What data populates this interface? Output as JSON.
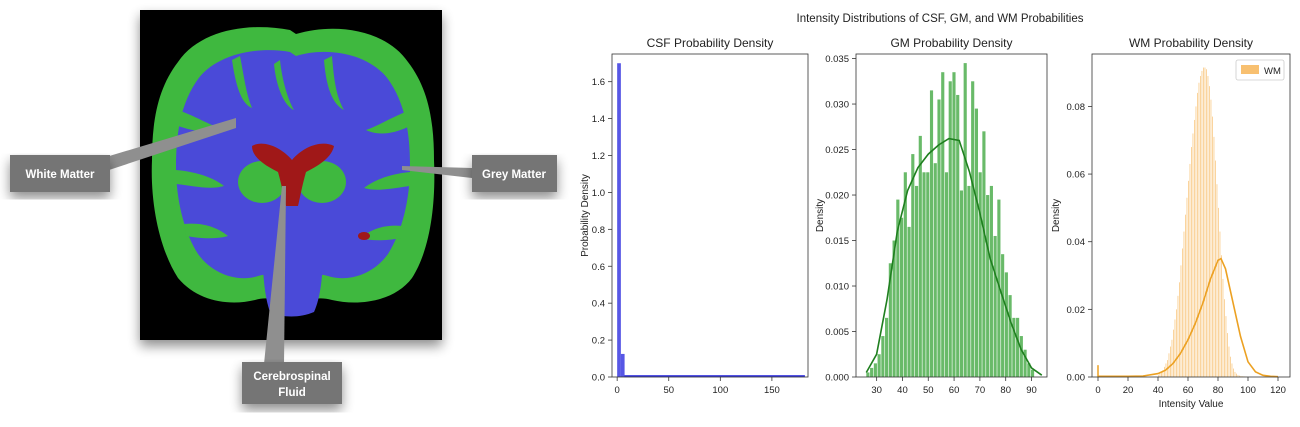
{
  "brain_panel": {
    "labels": {
      "white_matter": "White Matter",
      "grey_matter": "Grey Matter",
      "csf_line1": "Cerebrospinal",
      "csf_line2": "Fluid"
    },
    "colors": {
      "white_matter": "#4a4ad8",
      "grey_matter": "#3fb83f",
      "csf": "#a01818",
      "label_box": "#757575"
    }
  },
  "figure_title": "Intensity Distributions of CSF, GM, and WM Probabilities",
  "chart_data": [
    {
      "type": "bar",
      "title": "CSF Probability Density",
      "xlabel": "",
      "ylabel": "Probability Density",
      "xlim": [
        -5,
        185
      ],
      "ylim": [
        0,
        1.75
      ],
      "xticks": [
        0,
        50,
        100,
        150
      ],
      "yticks": [
        0.0,
        0.2,
        0.4,
        0.6,
        0.8,
        1.0,
        1.2,
        1.4,
        1.6
      ],
      "bin_width": 3.6,
      "bins": [
        {
          "x": 0,
          "value": 1.7
        },
        {
          "x": 3.6,
          "value": 0.125
        }
      ],
      "baseline_line": {
        "x": [
          7,
          182
        ],
        "value": 0.005
      },
      "color": "#3a3ae0"
    },
    {
      "type": "bar",
      "title": "GM Probability Density",
      "xlabel": "",
      "ylabel": "Density",
      "xlim": [
        22,
        96
      ],
      "ylim": [
        0,
        0.0355
      ],
      "xticks": [
        30,
        40,
        50,
        60,
        70,
        80,
        90
      ],
      "yticks": [
        0.0,
        0.005,
        0.01,
        0.015,
        0.02,
        0.025,
        0.03,
        0.035
      ],
      "bin_start": 26,
      "bin_width": 1.45,
      "values": [
        0.0005,
        0.001,
        0.0015,
        0.0025,
        0.0045,
        0.0065,
        0.0125,
        0.015,
        0.0195,
        0.0175,
        0.0225,
        0.0165,
        0.0245,
        0.021,
        0.0265,
        0.0225,
        0.0225,
        0.0315,
        0.0235,
        0.0305,
        0.0335,
        0.0225,
        0.0325,
        0.0335,
        0.031,
        0.0205,
        0.0345,
        0.021,
        0.0325,
        0.0295,
        0.0225,
        0.027,
        0.02,
        0.021,
        0.0155,
        0.0195,
        0.0135,
        0.0115,
        0.009,
        0.0065,
        0.0065,
        0.0045,
        0.003,
        0.0015,
        0.0008
      ],
      "kde": {
        "x": [
          26,
          30,
          34,
          38,
          42,
          46,
          50,
          54,
          58,
          62,
          66,
          70,
          74,
          78,
          82,
          86,
          90,
          94
        ],
        "y": [
          0.0005,
          0.0025,
          0.0085,
          0.016,
          0.0205,
          0.023,
          0.0245,
          0.0255,
          0.0262,
          0.026,
          0.0225,
          0.018,
          0.013,
          0.0095,
          0.006,
          0.003,
          0.001,
          0.0002
        ]
      },
      "color": "#4fae4f",
      "line_color": "#1f7f1f"
    },
    {
      "type": "bar",
      "title": "WM Probability Density",
      "xlabel": "Intensity Value",
      "ylabel": "Density",
      "xlim": [
        -4,
        128
      ],
      "ylim": [
        0,
        0.0955
      ],
      "xticks": [
        0,
        20,
        40,
        60,
        80,
        100,
        120
      ],
      "yticks": [
        0.0,
        0.02,
        0.04,
        0.06,
        0.08
      ],
      "legend": {
        "label": "WM",
        "position": "top-right"
      },
      "bin_start": 40,
      "bin_width": 1,
      "values": [
        0.0005,
        0.001,
        0.0015,
        0.002,
        0.003,
        0.004,
        0.005,
        0.007,
        0.009,
        0.011,
        0.014,
        0.017,
        0.02,
        0.024,
        0.028,
        0.033,
        0.038,
        0.043,
        0.048,
        0.053,
        0.058,
        0.063,
        0.068,
        0.072,
        0.076,
        0.08,
        0.084,
        0.087,
        0.089,
        0.0905,
        0.0915,
        0.0915,
        0.091,
        0.089,
        0.086,
        0.082,
        0.077,
        0.071,
        0.064,
        0.057,
        0.05,
        0.043,
        0.036,
        0.029,
        0.023,
        0.018,
        0.013,
        0.009,
        0.006,
        0.004,
        0.0025,
        0.0015,
        0.001,
        0.0006,
        0.0004,
        0.0003,
        0.0002,
        0.0002,
        0.0001,
        0.0001
      ],
      "spike": {
        "x": 0,
        "value": 0.0035
      },
      "kde": {
        "x": [
          0,
          10,
          20,
          30,
          40,
          45,
          50,
          55,
          60,
          65,
          70,
          75,
          80,
          82,
          85,
          90,
          95,
          100,
          105,
          110,
          115,
          120
        ],
        "y": [
          0.0002,
          0.0002,
          0.0002,
          0.0003,
          0.001,
          0.002,
          0.004,
          0.007,
          0.011,
          0.016,
          0.022,
          0.029,
          0.0345,
          0.035,
          0.032,
          0.022,
          0.012,
          0.0045,
          0.0015,
          0.0005,
          0.0002,
          0.0001
        ]
      },
      "color": "#f8c070",
      "line_color": "#eca122"
    }
  ]
}
